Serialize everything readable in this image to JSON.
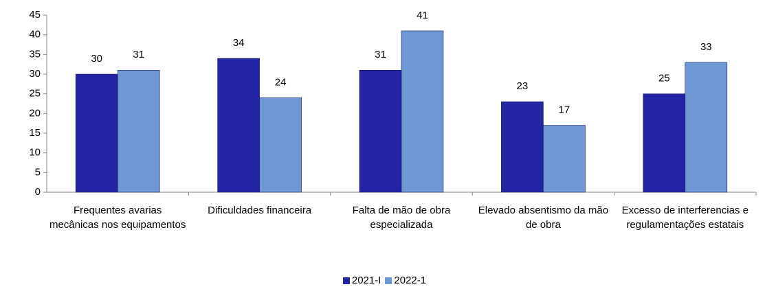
{
  "chart_data": {
    "type": "bar",
    "categories": [
      "Frequentes avarias mecânicas nos equipamentos",
      "Dificuldades financeira",
      "Falta de mão de obra especializada",
      "Elevado absentismo da mão de obra",
      "Excesso de interferencias e regulamentações estatais"
    ],
    "series": [
      {
        "name": "2021-I",
        "color": "#2323a6",
        "values": [
          30,
          34,
          31,
          23,
          25
        ]
      },
      {
        "name": "2022-1",
        "color": "#6d98d4",
        "values": [
          31,
          24,
          41,
          17,
          33
        ]
      }
    ],
    "ylim": [
      0,
      45
    ],
    "yticks": [
      0,
      5,
      10,
      15,
      20,
      25,
      30,
      35,
      40,
      45
    ],
    "grid": false,
    "legend": "bottom"
  }
}
